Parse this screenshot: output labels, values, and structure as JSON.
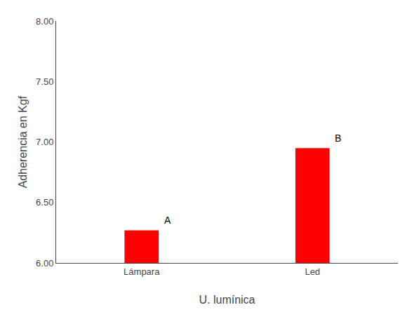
{
  "chart_data": {
    "type": "bar",
    "categories": [
      "Lámpara",
      "Led"
    ],
    "values": [
      6.27,
      6.95
    ],
    "color": "#FF0000",
    "xlabel": "U. lumínica",
    "ylabel": "Adherencia en Kgf",
    "ylim": [
      6.0,
      8.0
    ],
    "yticks": [
      {
        "value": 6.0,
        "label": "6.00"
      },
      {
        "value": 6.5,
        "label": "6.50"
      },
      {
        "value": 7.0,
        "label": "7.00"
      },
      {
        "value": 7.5,
        "label": "7.50"
      },
      {
        "value": 8.0,
        "label": "8.00"
      }
    ],
    "annotations": [
      "A",
      "B"
    ],
    "grid": false
  }
}
